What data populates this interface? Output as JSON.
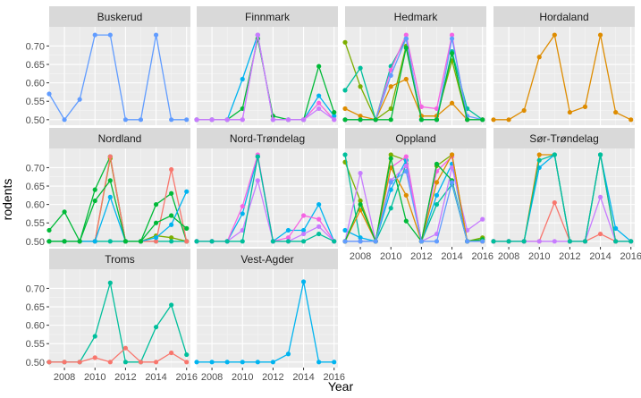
{
  "chart_data": {
    "type": "line",
    "title": "",
    "xlabel": "Year",
    "ylabel": "rodents",
    "xlim": [
      2007,
      2016.25
    ],
    "ylim": [
      0.485,
      0.752
    ],
    "x_ticks": [
      2008,
      2010,
      2012,
      2014,
      2016
    ],
    "y_ticks": [
      0.5,
      0.55,
      0.6,
      0.65,
      0.7
    ],
    "y_tick_labels": [
      "0.50",
      "0.55",
      "0.60",
      "0.65",
      "0.70"
    ],
    "legend": "none",
    "grid": true,
    "colors": {
      "c_red": "#F8766D",
      "c_orange": "#DE8C00",
      "c_olive": "#7CAE00",
      "c_green": "#00BA38",
      "c_teal": "#00BF9C",
      "c_cyan": "#00B4F0",
      "c_blue": "#619CFF",
      "c_purple": "#C77CFF",
      "c_pink": "#F564E3",
      "panel_bg": "#EBEBEB",
      "strip_bg": "#D9D9D9",
      "grid_major": "#FFFFFF"
    },
    "x": [
      2007,
      2008,
      2009,
      2010,
      2011,
      2012,
      2013,
      2014,
      2015,
      2016
    ],
    "panels": [
      {
        "name": "Buskerud",
        "series": [
          {
            "color": "c_blue",
            "values": [
              0.57,
              0.5,
              0.555,
              0.73,
              0.73,
              0.5,
              0.5,
              0.73,
              0.5,
              0.5
            ]
          }
        ]
      },
      {
        "name": "Finnmark",
        "series": [
          {
            "color": "c_cyan",
            "values": [
              0.5,
              0.5,
              0.5,
              0.61,
              0.73,
              0.5,
              0.5,
              0.5,
              0.565,
              0.51
            ]
          },
          {
            "color": "c_green",
            "values": [
              0.5,
              0.5,
              0.5,
              0.53,
              0.72,
              0.51,
              0.5,
              0.5,
              0.645,
              0.52
            ]
          },
          {
            "color": "c_pink",
            "values": [
              0.5,
              0.5,
              0.5,
              0.5,
              0.73,
              0.5,
              0.5,
              0.5,
              0.545,
              0.5
            ]
          },
          {
            "color": "c_purple",
            "values": [
              0.5,
              0.5,
              0.5,
              0.5,
              0.73,
              0.5,
              0.5,
              0.5,
              0.53,
              0.5
            ]
          }
        ]
      },
      {
        "name": "Hedmark",
        "series": [
          {
            "color": "c_olive",
            "values": [
              0.71,
              0.59,
              0.5,
              0.53,
              0.7,
              0.51,
              0.51,
              0.66,
              0.5,
              0.5
            ]
          },
          {
            "color": "c_orange",
            "values": [
              0.53,
              0.51,
              0.5,
              0.59,
              0.61,
              0.51,
              0.51,
              0.545,
              0.5,
              0.5
            ]
          },
          {
            "color": "c_teal",
            "values": [
              0.58,
              0.64,
              0.5,
              0.645,
              0.72,
              0.5,
              0.5,
              0.685,
              0.53,
              0.5
            ]
          },
          {
            "color": "c_pink",
            "values": [
              0.5,
              0.5,
              0.5,
              0.635,
              0.73,
              0.535,
              0.53,
              0.73,
              0.5,
              0.5
            ]
          },
          {
            "color": "c_blue",
            "values": [
              0.5,
              0.5,
              0.5,
              0.62,
              0.72,
              0.5,
              0.5,
              0.72,
              0.51,
              0.5
            ]
          },
          {
            "color": "c_green",
            "values": [
              0.5,
              0.5,
              0.5,
              0.5,
              0.695,
              0.5,
              0.5,
              0.68,
              0.5,
              0.5
            ]
          }
        ]
      },
      {
        "name": "Hordaland",
        "series": [
          {
            "color": "c_orange",
            "values": [
              0.5,
              0.5,
              0.525,
              0.67,
              0.73,
              0.52,
              0.535,
              0.73,
              0.52,
              0.5
            ]
          }
        ]
      },
      {
        "name": "Nordland",
        "series": [
          {
            "color": "c_green",
            "values": [
              0.53,
              0.58,
              0.5,
              0.64,
              0.73,
              0.5,
              0.5,
              0.6,
              0.63,
              0.5
            ]
          },
          {
            "color": "c_olive",
            "values": [
              0.5,
              0.5,
              0.5,
              0.5,
              0.725,
              0.5,
              0.5,
              0.515,
              0.51,
              0.5
            ]
          },
          {
            "color": "c_teal",
            "values": [
              0.5,
              0.5,
              0.5,
              0.5,
              0.5,
              0.5,
              0.5,
              0.5,
              0.5,
              0.5
            ]
          },
          {
            "color": "c_red",
            "values": [
              0.5,
              0.5,
              0.5,
              0.5,
              0.73,
              0.5,
              0.5,
              0.5,
              0.695,
              0.5
            ]
          },
          {
            "color": "c_cyan",
            "values": [
              0.5,
              0.5,
              0.5,
              0.5,
              0.62,
              0.5,
              0.5,
              0.51,
              0.545,
              0.635
            ]
          },
          {
            "color": "c_green",
            "values": [
              0.5,
              0.5,
              0.5,
              0.61,
              0.665,
              0.5,
              0.5,
              0.55,
              0.57,
              0.535
            ]
          }
        ]
      },
      {
        "name": "Nord-Trøndelag",
        "series": [
          {
            "color": "c_cyan",
            "values": [
              0.5,
              0.5,
              0.5,
              0.575,
              0.73,
              0.5,
              0.53,
              0.53,
              0.6,
              0.5
            ]
          },
          {
            "color": "c_pink",
            "values": [
              0.5,
              0.5,
              0.5,
              0.595,
              0.735,
              0.5,
              0.51,
              0.57,
              0.56,
              0.5
            ]
          },
          {
            "color": "c_purple",
            "values": [
              0.5,
              0.5,
              0.5,
              0.53,
              0.665,
              0.5,
              0.5,
              0.52,
              0.54,
              0.5
            ]
          },
          {
            "color": "c_teal",
            "values": [
              0.5,
              0.5,
              0.5,
              0.5,
              0.73,
              0.5,
              0.5,
              0.5,
              0.52,
              0.5
            ]
          }
        ]
      },
      {
        "name": "Oppland",
        "series": [
          {
            "color": "c_olive",
            "values": [
              0.715,
              0.61,
              0.5,
              0.735,
              0.72,
              0.5,
              0.705,
              0.735,
              0.5,
              0.51
            ]
          },
          {
            "color": "c_teal",
            "values": [
              0.735,
              0.5,
              0.5,
              0.59,
              0.71,
              0.5,
              0.6,
              0.655,
              0.5,
              0.5
            ]
          },
          {
            "color": "c_cyan",
            "values": [
              0.53,
              0.51,
              0.5,
              0.64,
              0.72,
              0.5,
              0.625,
              0.71,
              0.5,
              0.5
            ]
          },
          {
            "color": "c_purple",
            "values": [
              0.5,
              0.685,
              0.5,
              0.665,
              0.705,
              0.5,
              0.52,
              0.7,
              0.53,
              0.56
            ]
          },
          {
            "color": "c_pink",
            "values": [
              0.5,
              0.5,
              0.5,
              0.7,
              0.73,
              0.5,
              0.69,
              0.73,
              0.5,
              0.5
            ]
          },
          {
            "color": "c_orange",
            "values": [
              0.5,
              0.585,
              0.5,
              0.7,
              0.625,
              0.5,
              0.66,
              0.735,
              0.5,
              0.5
            ]
          },
          {
            "color": "c_green",
            "values": [
              0.5,
              0.6,
              0.5,
              0.725,
              0.555,
              0.5,
              0.71,
              0.665,
              0.5,
              0.505
            ]
          },
          {
            "color": "c_blue",
            "values": [
              0.5,
              0.5,
              0.5,
              0.66,
              0.69,
              0.5,
              0.5,
              0.66,
              0.5,
              0.5
            ]
          }
        ]
      },
      {
        "name": "Sør-Trøndelag",
        "series": [
          {
            "color": "c_orange",
            "values": [
              0.5,
              0.5,
              0.5,
              0.735,
              0.735,
              0.5,
              0.5,
              0.735,
              0.5,
              0.5
            ]
          },
          {
            "color": "c_cyan",
            "values": [
              0.5,
              0.5,
              0.5,
              0.7,
              0.735,
              0.5,
              0.5,
              0.735,
              0.535,
              0.5
            ]
          },
          {
            "color": "c_red",
            "values": [
              0.5,
              0.5,
              0.5,
              0.5,
              0.605,
              0.5,
              0.5,
              0.52,
              0.5,
              0.5
            ]
          },
          {
            "color": "c_purple",
            "values": [
              0.5,
              0.5,
              0.5,
              0.5,
              0.5,
              0.5,
              0.5,
              0.62,
              0.5,
              0.5
            ]
          },
          {
            "color": "c_teal",
            "values": [
              0.5,
              0.5,
              0.5,
              0.72,
              0.735,
              0.5,
              0.5,
              0.735,
              0.5,
              0.5
            ]
          }
        ]
      },
      {
        "name": "Troms",
        "series": [
          {
            "color": "c_teal",
            "values": [
              0.5,
              0.5,
              0.5,
              0.57,
              0.715,
              0.5,
              0.5,
              0.595,
              0.655,
              0.52
            ]
          },
          {
            "color": "c_red",
            "values": [
              0.5,
              0.5,
              0.5,
              0.512,
              0.5,
              0.538,
              0.5,
              0.5,
              0.525,
              0.5
            ]
          }
        ]
      },
      {
        "name": "Vest-Agder",
        "series": [
          {
            "color": "c_cyan",
            "values": [
              0.5,
              0.5,
              0.5,
              0.5,
              0.5,
              0.5,
              0.522,
              0.718,
              0.5,
              0.5
            ]
          }
        ]
      }
    ]
  }
}
